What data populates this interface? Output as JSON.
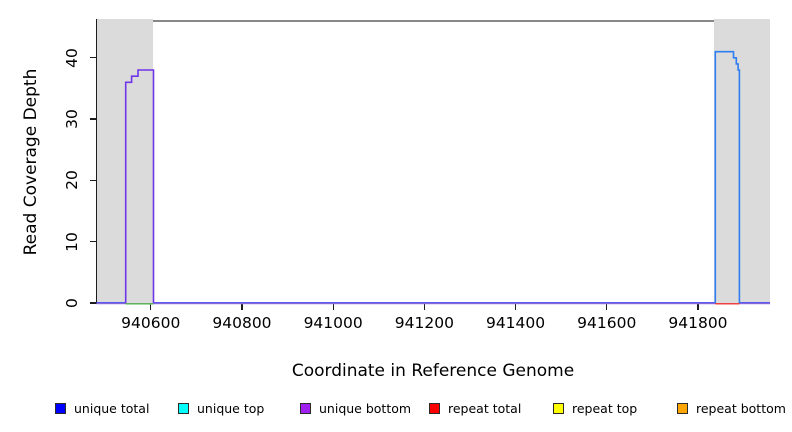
{
  "figure": {
    "xlabel": "Coordinate in Reference Genome",
    "ylabel": "Read Coverage Depth"
  },
  "legend": {
    "items": [
      {
        "label": "unique total",
        "color": "#0000FF"
      },
      {
        "label": "unique top",
        "color": "#00FFFF"
      },
      {
        "label": "unique bottom",
        "color": "#A020F0"
      },
      {
        "label": "repeat total",
        "color": "#FF0000"
      },
      {
        "label": "repeat top",
        "color": "#FFFF00"
      },
      {
        "label": "repeat bottom",
        "color": "#FFA500"
      }
    ]
  },
  "chart_data": {
    "type": "line",
    "title": "",
    "xlabel": "Coordinate in Reference Genome",
    "ylabel": "Read Coverage Depth",
    "xlim": [
      940481,
      941958
    ],
    "ylim": [
      0,
      46
    ],
    "grid": false,
    "legend_position": "bottom",
    "x_ticks": [
      940600,
      940800,
      941000,
      941200,
      941400,
      941600,
      941800
    ],
    "x_tick_labels": [
      "940600",
      "940800",
      "941000",
      "941200",
      "941400",
      "941600",
      "941800"
    ],
    "y_ticks": [
      0,
      10,
      20,
      30,
      40
    ],
    "y_tick_labels": [
      "0",
      "10",
      "20",
      "30",
      "40"
    ],
    "shaded_regions": [
      {
        "name": "left-repeat-flank",
        "x0": 940481,
        "x1": 940606,
        "color": "#DBDBDB"
      },
      {
        "name": "right-repeat-flank",
        "x0": 941836,
        "x1": 941958,
        "color": "#DBDBDB"
      }
    ],
    "span_line": {
      "name": "unique-region-span",
      "x0": 940606,
      "x1": 941836,
      "y": 46,
      "color": "#888888"
    },
    "series": [
      {
        "name": "unique total zero baseline",
        "color": "#4545F0",
        "width": 1.2,
        "dy": -0.3,
        "paths": [
          [
            [
              940481,
              0
            ],
            [
              940545,
              0
            ]
          ],
          [
            [
              940606,
              0
            ],
            [
              941838,
              0
            ]
          ],
          [
            [
              941891,
              0
            ],
            [
              941958,
              0
            ]
          ]
        ]
      },
      {
        "name": "unique bottom zero baseline",
        "color": "#A07CF2",
        "width": 1.0,
        "dy": 0.8,
        "paths": [
          [
            [
              940481,
              0
            ],
            [
              940545,
              0
            ]
          ],
          [
            [
              940606,
              0
            ],
            [
              941838,
              0
            ]
          ],
          [
            [
              941891,
              0
            ],
            [
              941958,
              0
            ]
          ]
        ]
      },
      {
        "name": "zero segment under left peak (green)",
        "color": "#6EC46E",
        "width": 1.5,
        "dy": 0.9,
        "paths": [
          [
            [
              940545,
              0
            ],
            [
              940606,
              0
            ]
          ]
        ]
      },
      {
        "name": "repeat total zero segment under right peak",
        "color": "#EE4040",
        "width": 1.5,
        "dy": 0.7,
        "paths": [
          [
            [
              941838,
              0
            ],
            [
              941891,
              0
            ]
          ]
        ]
      },
      {
        "name": "unique bottom coverage peak",
        "color": "#6F35E8",
        "width": 1.6,
        "dy": 0,
        "paths": [
          [
            [
              940545,
              0
            ],
            [
              940545,
              36
            ],
            [
              940558,
              36
            ],
            [
              940558,
              37
            ],
            [
              940572,
              37
            ],
            [
              940572,
              38
            ],
            [
              940606,
              38
            ],
            [
              940606,
              0
            ]
          ]
        ]
      },
      {
        "name": "unique total coverage peak",
        "color": "#2F7DF0",
        "width": 1.6,
        "dy": 0,
        "paths": [
          [
            [
              941838,
              0
            ],
            [
              941838,
              41
            ],
            [
              941878,
              41
            ],
            [
              941878,
              40
            ],
            [
              941884,
              40
            ],
            [
              941884,
              39
            ],
            [
              941888,
              39
            ],
            [
              941888,
              38
            ],
            [
              941891,
              38
            ],
            [
              941891,
              0
            ]
          ]
        ]
      }
    ]
  }
}
